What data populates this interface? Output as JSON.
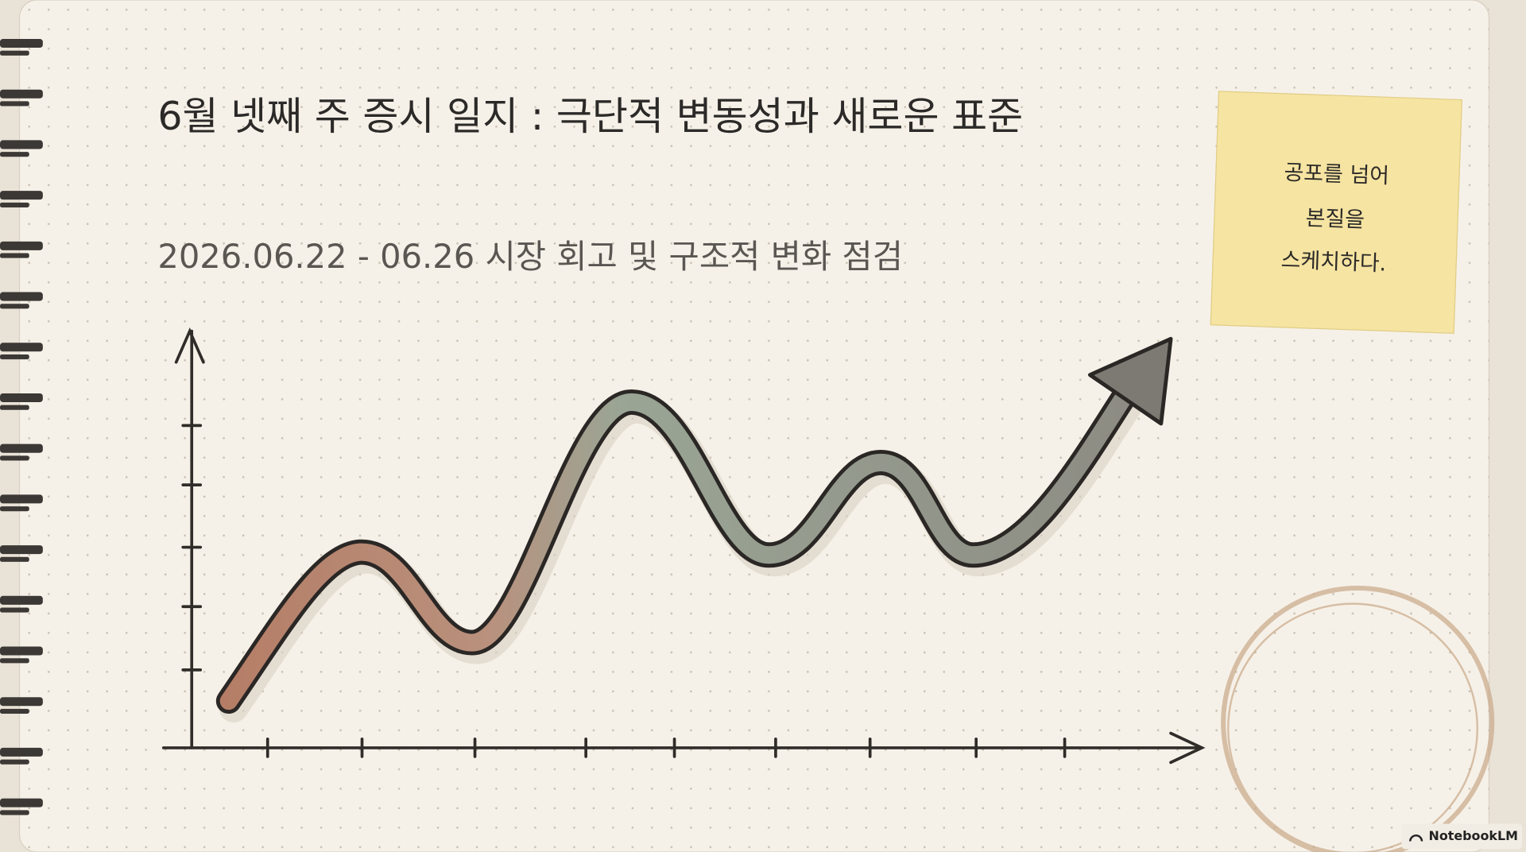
{
  "header": {
    "title": "6월 넷째 주 증시 일지 : 극단적 변동성과 새로운 표준",
    "subtitle": "2026.06.22 - 06.26 시장 회고 및 구조적 변화 점검"
  },
  "sticky_note": {
    "lines": [
      "공포를 넘어",
      "본질을",
      "스케치하다."
    ]
  },
  "footer": {
    "badge": "NotebookLM"
  }
}
